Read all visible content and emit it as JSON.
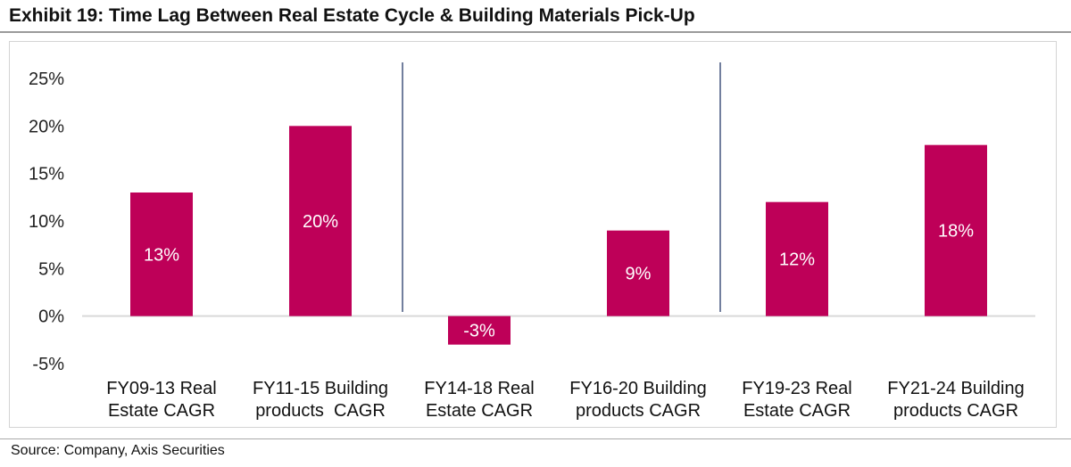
{
  "header": {
    "title": "Exhibit 19: Time Lag Between Real Estate Cycle & Building Materials Pick-Up"
  },
  "footer": {
    "source": "Source: Company, Axis Securities"
  },
  "colors": {
    "bar": "#be0058",
    "divider": "#44557f",
    "axis": "#d9d9d9"
  },
  "chart_data": {
    "type": "bar",
    "title": "Exhibit 19: Time Lag Between Real Estate Cycle & Building Materials Pick-Up",
    "categories": [
      [
        "FY09-13 Real",
        "Estate CAGR"
      ],
      [
        "FY11-15 Building",
        "products  CAGR"
      ],
      [
        "FY14-18 Real",
        "Estate CAGR"
      ],
      [
        "FY16-20 Building",
        "products CAGR"
      ],
      [
        "FY19-23 Real",
        "Estate CAGR"
      ],
      [
        "FY21-24 Building",
        "products CAGR"
      ]
    ],
    "values": [
      13,
      20,
      -3,
      9,
      12,
      18
    ],
    "data_labels": [
      "13%",
      "20%",
      "-3%",
      "9%",
      "12%",
      "18%"
    ],
    "yticks": [
      25,
      20,
      15,
      10,
      5,
      0,
      -5
    ],
    "ytick_labels": [
      "25%",
      "20%",
      "15%",
      "10%",
      "5%",
      "0%",
      "-5%"
    ],
    "ylim": [
      -5,
      25
    ],
    "xlabel": "",
    "ylabel": "",
    "grid": false,
    "dividers_after_category_index": [
      1,
      3
    ]
  }
}
